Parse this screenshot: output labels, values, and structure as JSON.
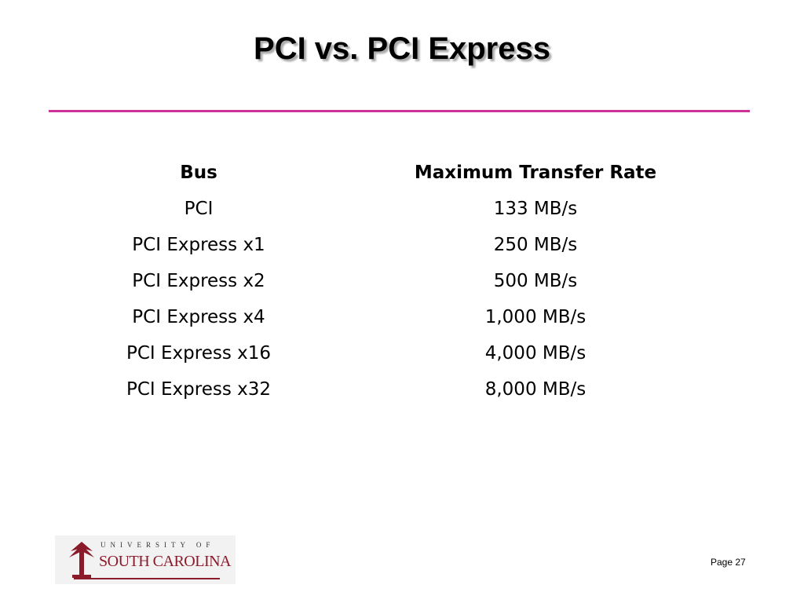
{
  "header": {
    "title": "PCI vs. PCI Express"
  },
  "table": {
    "columns": [
      "Bus",
      "Maximum Transfer Rate"
    ],
    "rows": [
      [
        "PCI",
        "133 MB/s"
      ],
      [
        "PCI Express x1",
        "250 MB/s"
      ],
      [
        "PCI Express x2",
        "500 MB/s"
      ],
      [
        "PCI Express x4",
        "1,000 MB/s"
      ],
      [
        "PCI Express x16",
        "4,000 MB/s"
      ],
      [
        "PCI Express x32",
        "8,000 MB/s"
      ]
    ]
  },
  "footer": {
    "logo": {
      "line1": "UNIVERSITY OF",
      "line2": "SOUTH CAROLINA"
    },
    "page": "Page 27"
  }
}
